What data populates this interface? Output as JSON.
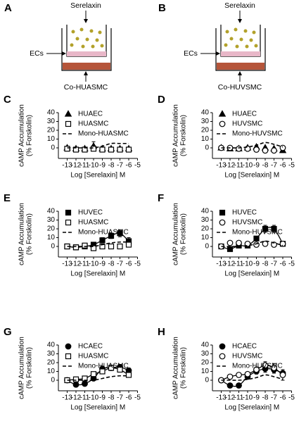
{
  "diagrams": [
    {
      "panel": "A",
      "top": "Serelaxin",
      "left": "ECs",
      "bottom": "Co-HUASMC"
    },
    {
      "panel": "B",
      "top": "Serelaxin",
      "left": "ECs",
      "bottom": "Co-HUVSMC"
    }
  ],
  "chart_data": [
    {
      "type": "line",
      "panel": "C",
      "ylabel": [
        "cAMP Accumulation",
        "(% Forskolin)"
      ],
      "xlabel": "Log [Serelaxin] M",
      "x": [
        -13,
        -12,
        -11,
        -10,
        -9,
        -8,
        -7,
        -6
      ],
      "xlim": [
        -14,
        -5
      ],
      "xticks": [
        -13,
        -12,
        -11,
        -10,
        -9,
        -8,
        -7,
        -6,
        -5
      ],
      "ylim": [
        -12,
        40
      ],
      "yticks": [
        0,
        10,
        20,
        30,
        40
      ],
      "series": [
        {
          "name": "HUAEC",
          "color": "#000000",
          "marker": "triangle",
          "filled": true,
          "line": "none",
          "values": [
            0,
            -1,
            -1,
            2,
            -1,
            -1,
            -1,
            -1
          ],
          "errors": [
            1,
            1,
            1,
            5,
            1,
            1,
            1,
            1
          ]
        },
        {
          "name": "HUASMC",
          "color": "#000000",
          "marker": "square",
          "filled": false,
          "line": "none",
          "values": [
            -1,
            -2,
            -2,
            -1,
            -2,
            -2,
            -2,
            -2
          ],
          "errors": [
            1,
            1,
            1,
            1,
            1,
            1,
            1,
            2
          ]
        },
        {
          "name": "Mono-HUASMC",
          "color": "#000000",
          "marker": "none",
          "filled": false,
          "line": "dashed",
          "values": [
            0,
            0,
            0,
            0,
            2,
            5,
            5,
            5
          ]
        }
      ]
    },
    {
      "type": "line",
      "panel": "D",
      "ylabel": [
        "cAMP Accumulation",
        "(% Forskolin)"
      ],
      "xlabel": "Log [Serelaxin] M",
      "x": [
        -13,
        -12,
        -11,
        -10,
        -9,
        -8,
        -7,
        -6
      ],
      "xlim": [
        -14,
        -5
      ],
      "xticks": [
        -13,
        -12,
        -11,
        -10,
        -9,
        -8,
        -7,
        -6,
        -5
      ],
      "ylim": [
        -12,
        40
      ],
      "yticks": [
        0,
        10,
        20,
        30,
        40
      ],
      "series": [
        {
          "name": "HUAEC",
          "color": "#000000",
          "marker": "triangle",
          "filled": true,
          "line": "none",
          "values": [
            0,
            -1,
            -1,
            0,
            1,
            0,
            -1,
            -3
          ],
          "errors": [
            1,
            1,
            1,
            1,
            1,
            1,
            1,
            1
          ]
        },
        {
          "name": "HUVSMC",
          "color": "#000000",
          "marker": "circle",
          "filled": false,
          "line": "none",
          "values": [
            0,
            0,
            -1,
            -1,
            -2,
            -3,
            -3,
            0
          ],
          "errors": [
            1,
            1,
            1,
            1,
            1,
            1,
            1,
            2
          ]
        },
        {
          "name": "Mono-HUVSMC",
          "color": "#000000",
          "marker": "none",
          "filled": false,
          "line": "dashed",
          "values": [
            0,
            0,
            0,
            1,
            3,
            6,
            4,
            1
          ]
        }
      ]
    },
    {
      "type": "line",
      "panel": "E",
      "ylabel": [
        "cAMP Accumulation",
        "(% Forskolin)"
      ],
      "xlabel": "Log [Serelaxin] M",
      "x": [
        -13,
        -12,
        -11,
        -10,
        -9,
        -8,
        -7,
        -6
      ],
      "xlim": [
        -14,
        -5
      ],
      "xticks": [
        -13,
        -12,
        -11,
        -10,
        -9,
        -8,
        -7,
        -6,
        -5
      ],
      "ylim": [
        -12,
        40
      ],
      "yticks": [
        0,
        10,
        20,
        30,
        40
      ],
      "series": [
        {
          "name": "HUVEC",
          "color": "#000000",
          "marker": "square",
          "filled": true,
          "line": "solid",
          "values": [
            0,
            -1,
            0,
            2,
            7,
            12,
            15,
            6
          ],
          "errors": [
            1,
            1,
            1,
            2,
            3,
            3,
            4,
            4
          ]
        },
        {
          "name": "HUASMC",
          "color": "#000000",
          "marker": "square",
          "filled": false,
          "line": "none",
          "values": [
            0,
            -1,
            1,
            -2,
            0,
            0,
            0,
            2
          ],
          "errors": [
            1,
            1,
            1,
            1,
            1,
            1,
            1,
            2
          ]
        },
        {
          "name": "Mono-HUASMC",
          "color": "#000000",
          "marker": "none",
          "filled": false,
          "line": "dashed",
          "values": [
            0,
            0,
            0,
            0,
            2,
            4,
            5,
            5
          ]
        }
      ]
    },
    {
      "type": "line",
      "panel": "F",
      "ylabel": [
        "cAMP Accumulation",
        "(% Forskolin)"
      ],
      "xlabel": "Log [Serelaxin] M",
      "x": [
        -13,
        -12,
        -11,
        -10,
        -9,
        -8,
        -7,
        -6
      ],
      "xlim": [
        -14,
        -5
      ],
      "xticks": [
        -13,
        -12,
        -11,
        -10,
        -9,
        -8,
        -7,
        -6,
        -5
      ],
      "ylim": [
        -12,
        40
      ],
      "yticks": [
        0,
        10,
        20,
        30,
        40
      ],
      "series": [
        {
          "name": "HUVEC",
          "color": "#000000",
          "marker": "square",
          "filled": true,
          "line": "solid",
          "values": [
            0,
            -3,
            1,
            1,
            9,
            20,
            20,
            3
          ],
          "errors": [
            1,
            1,
            1,
            2,
            2,
            4,
            4,
            2
          ]
        },
        {
          "name": "HUVSMC",
          "color": "#000000",
          "marker": "circle",
          "filled": false,
          "line": "none",
          "values": [
            0,
            4,
            4,
            3,
            2,
            3,
            2,
            3
          ],
          "errors": [
            1,
            1,
            1,
            1,
            1,
            1,
            1,
            1
          ]
        },
        {
          "name": "Mono-HUVSMC",
          "color": "#000000",
          "marker": "none",
          "filled": false,
          "line": "dashed",
          "values": [
            0,
            0,
            0,
            1,
            3,
            6,
            4,
            1
          ]
        }
      ]
    },
    {
      "type": "line",
      "panel": "G",
      "ylabel": [
        "cAMP Accumulation",
        "(% Forskolin)"
      ],
      "xlabel": "Log [Serelaxin] M",
      "x": [
        -13,
        -12,
        -11,
        -10,
        -9,
        -8,
        -7,
        -6
      ],
      "xlim": [
        -14,
        -5
      ],
      "xticks": [
        -13,
        -12,
        -11,
        -10,
        -9,
        -8,
        -7,
        -6,
        -5
      ],
      "ylim": [
        -12,
        40
      ],
      "yticks": [
        0,
        10,
        20,
        30,
        40
      ],
      "series": [
        {
          "name": "HCAEC",
          "color": "#000000",
          "marker": "circle",
          "filled": true,
          "line": "solid",
          "values": [
            0,
            -5,
            -4,
            2,
            13,
            14,
            15,
            11
          ],
          "errors": [
            1,
            1,
            1,
            2,
            3,
            3,
            3,
            3
          ]
        },
        {
          "name": "HUASMC",
          "color": "#000000",
          "marker": "square",
          "filled": false,
          "line": "solid",
          "values": [
            0,
            1,
            2,
            7,
            10,
            14,
            12,
            6
          ],
          "errors": [
            1,
            1,
            1,
            2,
            2,
            3,
            2,
            2
          ]
        },
        {
          "name": "Mono-HUASMC",
          "color": "#000000",
          "marker": "none",
          "filled": false,
          "line": "dashed",
          "values": [
            0,
            0,
            0,
            0,
            2,
            4,
            5,
            5
          ]
        }
      ]
    },
    {
      "type": "line",
      "panel": "H",
      "ylabel": [
        "cAMP Accumulation",
        "(% Forskolin)"
      ],
      "xlabel": "Log [Serelaxin] M",
      "x": [
        -13,
        -12,
        -11,
        -10,
        -9,
        -8,
        -7,
        -6
      ],
      "xlim": [
        -14,
        -5
      ],
      "xticks": [
        -13,
        -12,
        -11,
        -10,
        -9,
        -8,
        -7,
        -6,
        -5
      ],
      "ylim": [
        -12,
        40
      ],
      "yticks": [
        0,
        10,
        20,
        30,
        40
      ],
      "series": [
        {
          "name": "HCAEC",
          "color": "#000000",
          "marker": "circle",
          "filled": true,
          "line": "solid",
          "values": [
            0,
            -6,
            -6,
            4,
            10,
            13,
            12,
            8
          ],
          "errors": [
            1,
            1,
            1,
            2,
            3,
            4,
            4,
            4
          ]
        },
        {
          "name": "HUVSMC",
          "color": "#000000",
          "marker": "circle",
          "filled": false,
          "line": "solid",
          "values": [
            0,
            4,
            6,
            7,
            12,
            17,
            14,
            6
          ],
          "errors": [
            1,
            1,
            1,
            2,
            3,
            4,
            5,
            6
          ]
        },
        {
          "name": "Mono-HUVSMC",
          "color": "#000000",
          "marker": "none",
          "filled": false,
          "line": "dashed",
          "values": [
            0,
            0,
            0,
            1,
            3,
            6,
            4,
            1
          ]
        }
      ]
    }
  ]
}
